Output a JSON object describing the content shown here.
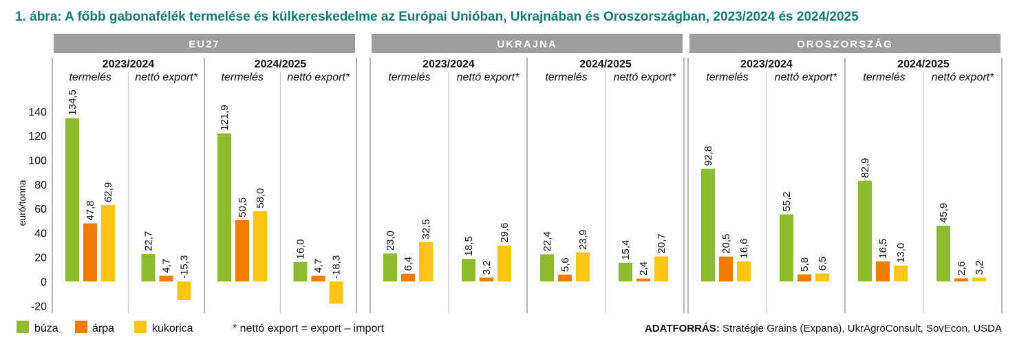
{
  "chart_data": {
    "type": "bar",
    "title": "1.  ábra: A főbb gabonafélék termelése és külkereskedelme az Európai Unióban, Ukrajnában és Oroszországban, 2023/2024 és 2024/2025",
    "ylabel": "euró/tonna",
    "ylim": [
      -20,
      140
    ],
    "yticks": [
      140,
      120,
      100,
      80,
      60,
      40,
      20,
      0,
      -20
    ],
    "legend": [
      "búza",
      "árpa",
      "kukorica"
    ],
    "colors": [
      "#8dbd2f",
      "#ee7d00",
      "#fdc315"
    ],
    "footnote": "* nettó export = export – import",
    "source_label": "ADATFORRÁS:",
    "source": "Stratégie Grains (Expana), UkrAgroConsult, SovEcon, USDA",
    "groups": [
      {
        "country": "EU27",
        "seasons": [
          {
            "season": "2023/2024",
            "sub": [
              {
                "label": "termelés",
                "values": [
                  134.5,
                  47.8,
                  62.9
                ]
              },
              {
                "label": "nettó export*",
                "values": [
                  22.7,
                  4.7,
                  -15.3
                ]
              }
            ]
          },
          {
            "season": "2024/2025",
            "sub": [
              {
                "label": "termelés",
                "values": [
                  121.9,
                  50.5,
                  58.0
                ]
              },
              {
                "label": "nettó export*",
                "values": [
                  16.0,
                  4.7,
                  -18.3
                ]
              }
            ]
          }
        ]
      },
      {
        "country": "UKRAJNA",
        "seasons": [
          {
            "season": "2023/2024",
            "sub": [
              {
                "label": "termelés",
                "values": [
                  23.0,
                  6.4,
                  32.5
                ]
              },
              {
                "label": "nettó export*",
                "values": [
                  18.5,
                  3.2,
                  29.6
                ]
              }
            ]
          },
          {
            "season": "2024/2025",
            "sub": [
              {
                "label": "termelés",
                "values": [
                  22.4,
                  5.6,
                  23.9
                ]
              },
              {
                "label": "nettó export*",
                "values": [
                  15.4,
                  2.4,
                  20.7
                ]
              }
            ]
          }
        ]
      },
      {
        "country": "OROSZORSZÁG",
        "seasons": [
          {
            "season": "2023/2024",
            "sub": [
              {
                "label": "termelés",
                "values": [
                  92.8,
                  20.5,
                  16.6
                ]
              },
              {
                "label": "nettó export*",
                "values": [
                  55.2,
                  5.8,
                  6.5
                ]
              }
            ]
          },
          {
            "season": "2024/2025",
            "sub": [
              {
                "label": "termelés",
                "values": [
                  82.9,
                  16.5,
                  13.0
                ]
              },
              {
                "label": "nettó export*",
                "values": [
                  45.9,
                  2.6,
                  3.2
                ]
              }
            ]
          }
        ]
      }
    ]
  }
}
